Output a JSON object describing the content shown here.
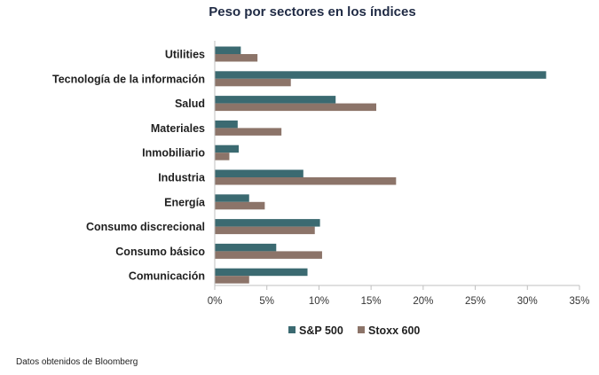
{
  "chart_data": {
    "type": "bar",
    "orientation": "horizontal",
    "title": "Peso por sectores en los índices",
    "categories": [
      "Utilities",
      "Tecnología de la información",
      "Salud",
      "Materiales",
      "Inmobiliario",
      "Industria",
      "Energía",
      "Consumo discrecional",
      "Consumo básico",
      "Comunicación"
    ],
    "series": [
      {
        "name": "S&P 500",
        "color": "#3b6a71",
        "values": [
          2.5,
          31.8,
          11.6,
          2.2,
          2.3,
          8.5,
          3.3,
          10.1,
          5.9,
          8.9
        ]
      },
      {
        "name": "Stoxx 600",
        "color": "#8c7469",
        "values": [
          4.1,
          7.3,
          15.5,
          6.4,
          1.4,
          17.4,
          4.8,
          9.6,
          10.3,
          3.3
        ]
      }
    ],
    "xticks": [
      "0%",
      "5%",
      "10%",
      "15%",
      "20%",
      "25%",
      "30%",
      "35%"
    ],
    "xlim": [
      0,
      35
    ],
    "legend_position": "bottom"
  },
  "footer": {
    "source": "Datos obtenidos de Bloomberg"
  }
}
